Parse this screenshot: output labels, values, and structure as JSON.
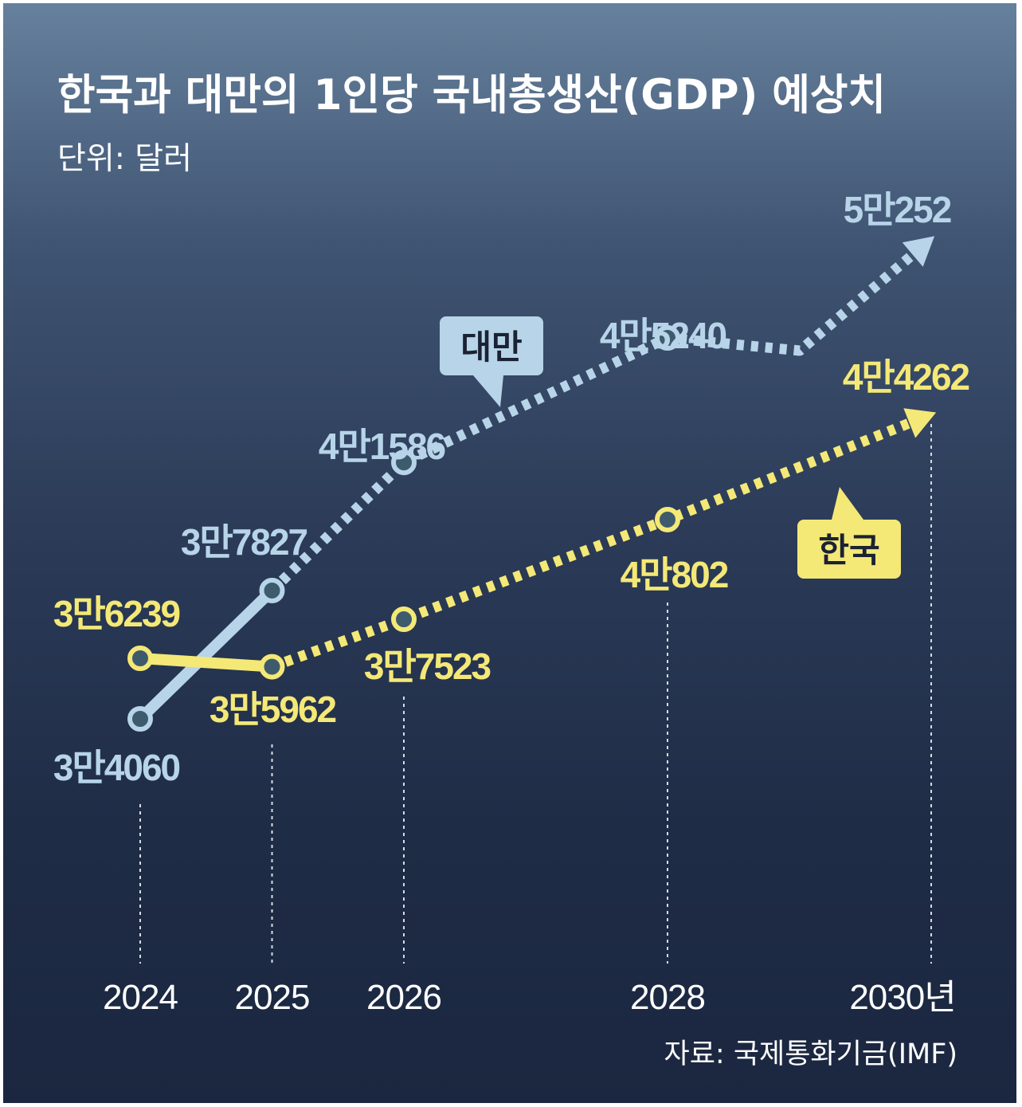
{
  "chart_data": {
    "type": "line",
    "title": "한국과 대만의 1인당 국내총생산(GDP) 예상치",
    "subtitle": "단위: 달러",
    "source": "자료: 국제통화기금(IMF)",
    "x_tick_labels": [
      "2024",
      "2025",
      "2026",
      "2028",
      "2030년"
    ],
    "x": [
      2024,
      2025,
      2026,
      2028,
      2030
    ],
    "series": [
      {
        "name": "대만",
        "color": "#b7d4e8",
        "values": [
          34060,
          37827,
          41586,
          45240,
          50252
        ],
        "labels": [
          "3만4060",
          "3만7827",
          "4만1586",
          "4만5240",
          "5만252"
        ]
      },
      {
        "name": "한국",
        "color": "#f4e877",
        "values": [
          36239,
          35962,
          37523,
          40802,
          44262
        ],
        "labels": [
          "3만6239",
          "3만5962",
          "3만7523",
          "4만802",
          "4만4262"
        ]
      }
    ],
    "solid_segment": "2024-2025",
    "dotted_segment": "2025-2030 (forecast)",
    "grid": false,
    "legend": "callout labels on lines"
  }
}
